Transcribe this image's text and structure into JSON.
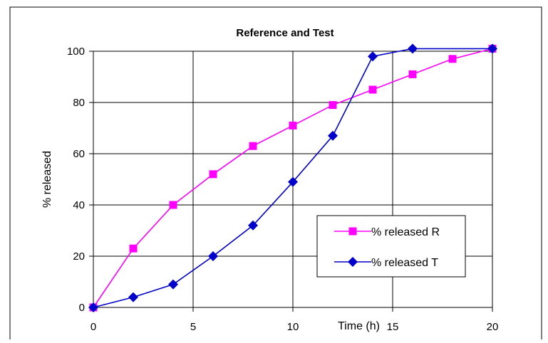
{
  "chart_data": {
    "type": "line",
    "title": "Reference and Test",
    "xlabel": "Time (h)",
    "ylabel": "% released",
    "xlim": [
      0,
      20
    ],
    "ylim": [
      0,
      100
    ],
    "xticks": [
      0,
      5,
      10,
      15,
      20
    ],
    "yticks": [
      0,
      20,
      40,
      60,
      80,
      100
    ],
    "grid": true,
    "legend_position": "bottom-right",
    "series": [
      {
        "name": "% released R",
        "color": "#ff00ff",
        "marker": "square",
        "x": [
          0,
          2,
          4,
          6,
          8,
          10,
          12,
          14,
          16,
          18,
          20
        ],
        "y": [
          0,
          23,
          40,
          52,
          63,
          71,
          79,
          85,
          91,
          97,
          101
        ]
      },
      {
        "name": "% released T",
        "color": "#0000cc",
        "marker": "diamond",
        "x": [
          0,
          2,
          4,
          6,
          8,
          10,
          12,
          14,
          16,
          20
        ],
        "y": [
          0,
          4,
          9,
          20,
          32,
          49,
          67,
          98,
          101,
          101
        ]
      }
    ]
  }
}
